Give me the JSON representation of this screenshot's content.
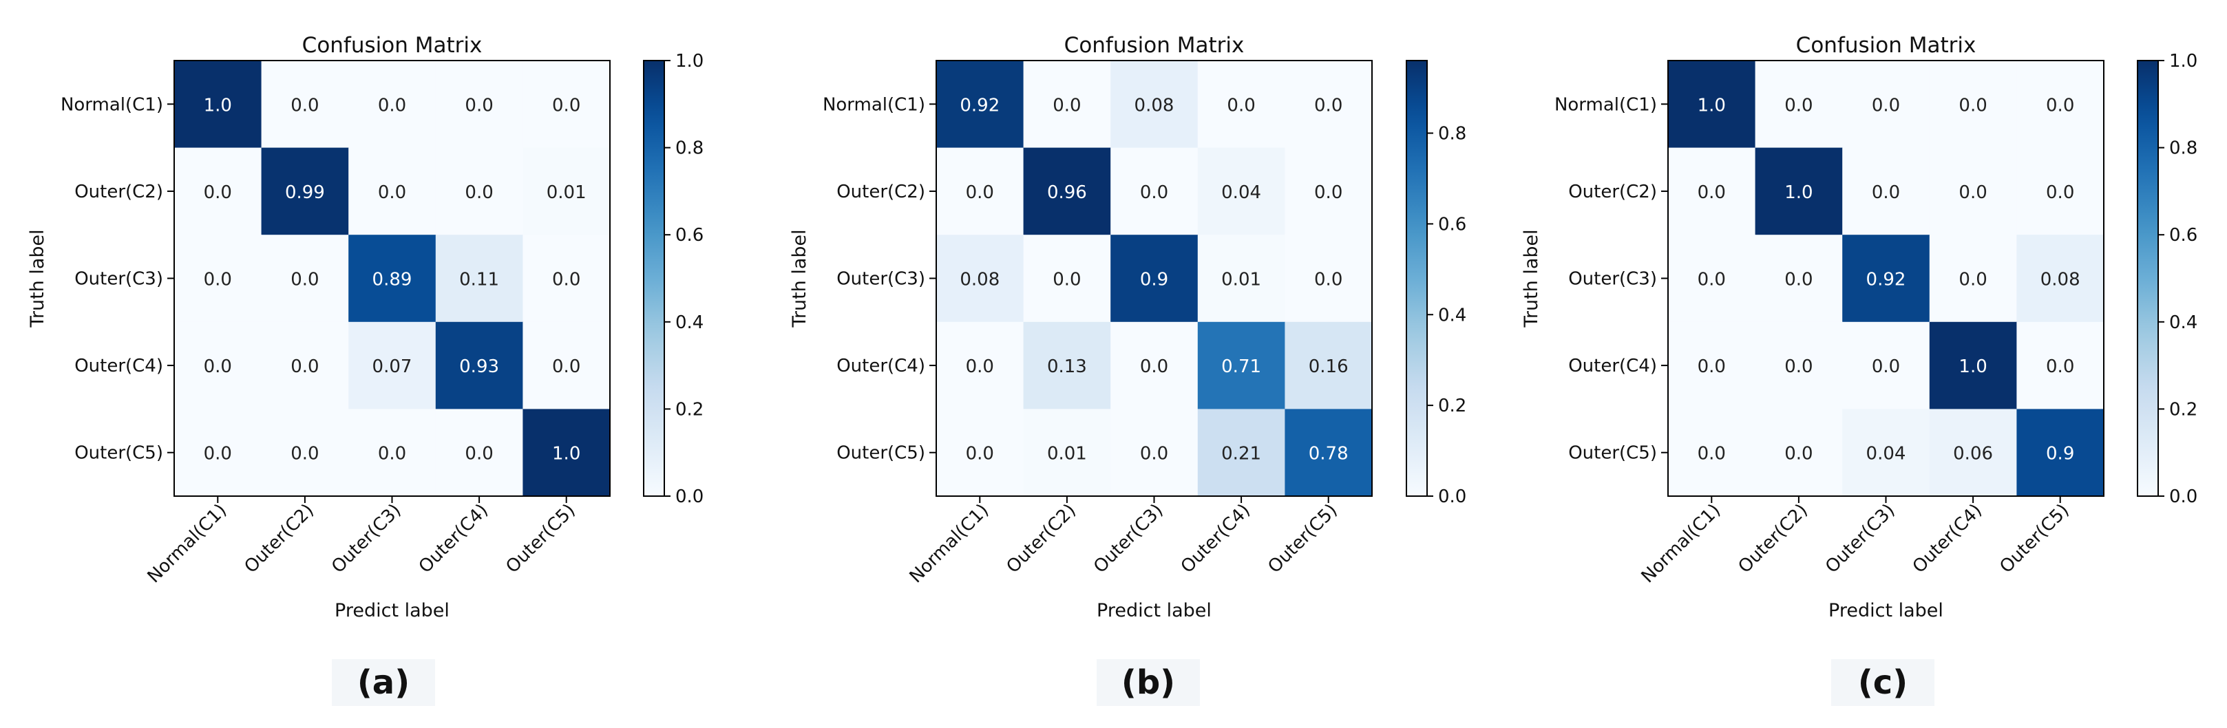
{
  "chart_data": [
    {
      "type": "heatmap",
      "title": "Confusion Matrix",
      "xlabel": "Predict label",
      "ylabel": "Truth label",
      "x_categories": [
        "Normal(C1)",
        "Outer(C2)",
        "Outer(C3)",
        "Outer(C4)",
        "Outer(C5)"
      ],
      "y_categories": [
        "Normal(C1)",
        "Outer(C2)",
        "Outer(C3)",
        "Outer(C4)",
        "Outer(C5)"
      ],
      "values": [
        [
          1.0,
          0.0,
          0.0,
          0.0,
          0.0
        ],
        [
          0.0,
          0.99,
          0.0,
          0.0,
          0.01
        ],
        [
          0.0,
          0.0,
          0.89,
          0.11,
          0.0
        ],
        [
          0.0,
          0.0,
          0.07,
          0.93,
          0.0
        ],
        [
          0.0,
          0.0,
          0.0,
          0.0,
          1.0
        ]
      ],
      "cell_labels": [
        [
          "1.0",
          "0.0",
          "0.0",
          "0.0",
          "0.0"
        ],
        [
          "0.0",
          "0.99",
          "0.0",
          "0.0",
          "0.01"
        ],
        [
          "0.0",
          "0.0",
          "0.89",
          "0.11",
          "0.0"
        ],
        [
          "0.0",
          "0.0",
          "0.07",
          "0.93",
          "0.0"
        ],
        [
          "0.0",
          "0.0",
          "0.0",
          "0.0",
          "1.0"
        ]
      ],
      "colorbar": {
        "range": [
          0,
          1.0
        ],
        "ticks": [
          0,
          0.2,
          0.4,
          0.6,
          0.8,
          1.0
        ],
        "tick_labels": [
          "0.0",
          "0.2",
          "0.4",
          "0.6",
          "0.8",
          "1.0"
        ]
      },
      "caption": "(a)"
    },
    {
      "type": "heatmap",
      "title": "Confusion Matrix",
      "xlabel": "Predict label",
      "ylabel": "Truth label",
      "x_categories": [
        "Normal(C1)",
        "Outer(C2)",
        "Outer(C3)",
        "Outer(C4)",
        "Outer(C5)"
      ],
      "y_categories": [
        "Normal(C1)",
        "Outer(C2)",
        "Outer(C3)",
        "Outer(C4)",
        "Outer(C5)"
      ],
      "values": [
        [
          0.92,
          0.0,
          0.08,
          0.0,
          0.0
        ],
        [
          0.0,
          0.96,
          0.0,
          0.04,
          0.0
        ],
        [
          0.08,
          0.0,
          0.9,
          0.01,
          0.0
        ],
        [
          0.0,
          0.13,
          0.0,
          0.71,
          0.16
        ],
        [
          0.0,
          0.01,
          0.0,
          0.21,
          0.78
        ]
      ],
      "cell_labels": [
        [
          "0.92",
          "0.0",
          "0.08",
          "0.0",
          "0.0"
        ],
        [
          "0.0",
          "0.96",
          "0.0",
          "0.04",
          "0.0"
        ],
        [
          "0.08",
          "0.0",
          "0.9",
          "0.01",
          "0.0"
        ],
        [
          "0.0",
          "0.13",
          "0.0",
          "0.71",
          "0.16"
        ],
        [
          "0.0",
          "0.01",
          "0.0",
          "0.21",
          "0.78"
        ]
      ],
      "colorbar": {
        "range": [
          0,
          0.96
        ],
        "ticks": [
          0,
          0.2,
          0.4,
          0.6,
          0.8
        ],
        "tick_labels": [
          "0.0",
          "0.2",
          "0.4",
          "0.6",
          "0.8"
        ]
      },
      "caption": "(b)"
    },
    {
      "type": "heatmap",
      "title": "Confusion Matrix",
      "xlabel": "Predict label",
      "ylabel": "Truth label",
      "x_categories": [
        "Normal(C1)",
        "Outer(C2)",
        "Outer(C3)",
        "Outer(C4)",
        "Outer(C5)"
      ],
      "y_categories": [
        "Normal(C1)",
        "Outer(C2)",
        "Outer(C3)",
        "Outer(C4)",
        "Outer(C5)"
      ],
      "values": [
        [
          1.0,
          0.0,
          0.0,
          0.0,
          0.0
        ],
        [
          0.0,
          1.0,
          0.0,
          0.0,
          0.0
        ],
        [
          0.0,
          0.0,
          0.92,
          0.0,
          0.08
        ],
        [
          0.0,
          0.0,
          0.0,
          1.0,
          0.0
        ],
        [
          0.0,
          0.0,
          0.04,
          0.06,
          0.9
        ]
      ],
      "cell_labels": [
        [
          "1.0",
          "0.0",
          "0.0",
          "0.0",
          "0.0"
        ],
        [
          "0.0",
          "1.0",
          "0.0",
          "0.0",
          "0.0"
        ],
        [
          "0.0",
          "0.0",
          "0.92",
          "0.0",
          "0.08"
        ],
        [
          "0.0",
          "0.0",
          "0.0",
          "1.0",
          "0.0"
        ],
        [
          "0.0",
          "0.0",
          "0.04",
          "0.06",
          "0.9"
        ]
      ],
      "colorbar": {
        "range": [
          0,
          1.0
        ],
        "ticks": [
          0,
          0.2,
          0.4,
          0.6,
          0.8,
          1.0
        ],
        "tick_labels": [
          "0.0",
          "0.2",
          "0.4",
          "0.6",
          "0.8",
          "1.0"
        ]
      },
      "caption": "(c)"
    }
  ],
  "colors": {
    "cmap": [
      "#f7fbff",
      "#deebf7",
      "#c6dbef",
      "#9ecae1",
      "#6baed6",
      "#4292c6",
      "#2171b5",
      "#08519c",
      "#08306b"
    ],
    "text_dark": "#222222",
    "text_light": "#ffffff",
    "frame": "#000000"
  }
}
